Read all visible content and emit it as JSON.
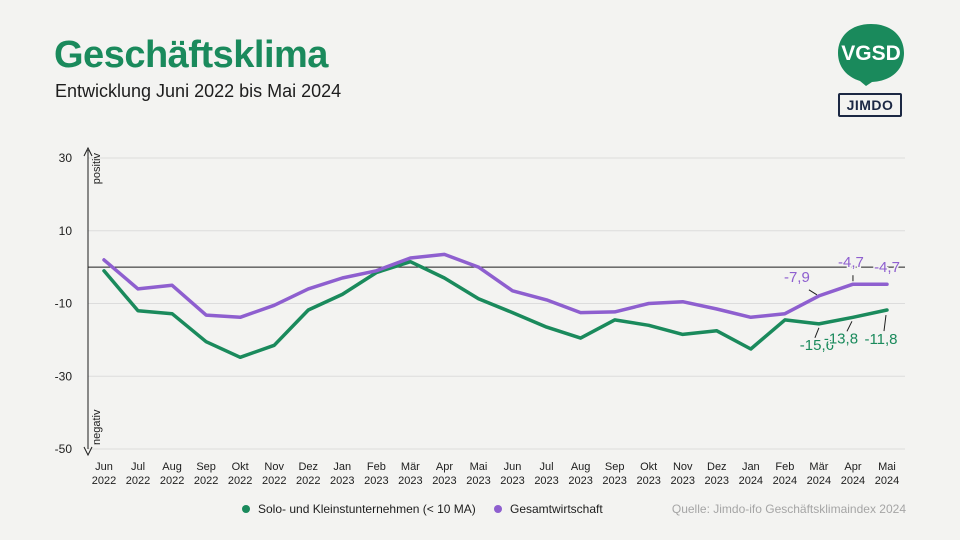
{
  "header": {
    "title": "Geschäftsklima",
    "subtitle": "Entwicklung Juni 2022 bis Mai 2024"
  },
  "logos": {
    "vgsd": "VGSD",
    "jimdo": "JIMDO"
  },
  "colors": {
    "green": "#1a8a5c",
    "purple": "#8e5fcf",
    "title_green": "#1a8a5c",
    "grid": "#dcdcdc"
  },
  "source": "Quelle: Jimdo-ifo Geschäftsklimaindex 2024",
  "chart_data": {
    "type": "line",
    "title": "Geschäftsklima",
    "xlabel": "",
    "ylabel": "",
    "axis_direction_labels": {
      "top": "positiv",
      "bottom": "negativ"
    },
    "ylim": [
      -50,
      30
    ],
    "yticks": [
      30,
      10,
      -10,
      -30,
      -50
    ],
    "categories": [
      [
        "Jun",
        "2022"
      ],
      [
        "Jul",
        "2022"
      ],
      [
        "Aug",
        "2022"
      ],
      [
        "Sep",
        "2022"
      ],
      [
        "Okt",
        "2022"
      ],
      [
        "Nov",
        "2022"
      ],
      [
        "Dez",
        "2022"
      ],
      [
        "Jan",
        "2023"
      ],
      [
        "Feb",
        "2023"
      ],
      [
        "Mär",
        "2023"
      ],
      [
        "Apr",
        "2023"
      ],
      [
        "Mai",
        "2023"
      ],
      [
        "Jun",
        "2023"
      ],
      [
        "Jul",
        "2023"
      ],
      [
        "Aug",
        "2023"
      ],
      [
        "Sep",
        "2023"
      ],
      [
        "Okt",
        "2023"
      ],
      [
        "Nov",
        "2023"
      ],
      [
        "Dez",
        "2023"
      ],
      [
        "Jan",
        "2024"
      ],
      [
        "Feb",
        "2024"
      ],
      [
        "Mär",
        "2024"
      ],
      [
        "Apr",
        "2024"
      ],
      [
        "Mai",
        "2024"
      ]
    ],
    "series": [
      {
        "name": "Solo- und Kleinstunternehmen (< 10 MA)",
        "color": "#1a8a5c",
        "values": [
          -1,
          -12,
          -12.8,
          -20.5,
          -24.8,
          -21.5,
          -11.8,
          -7.5,
          -1.5,
          1.5,
          -3,
          -8.7,
          -12.5,
          -16.5,
          -19.5,
          -14.5,
          -16,
          -18.5,
          -17.5,
          -22.5,
          -14.5,
          -15.6,
          -13.8,
          -11.8
        ],
        "labels": [
          {
            "index": 21,
            "text": "-15,6"
          },
          {
            "index": 22,
            "text": "-13,8"
          },
          {
            "index": 23,
            "text": "-11,8"
          }
        ]
      },
      {
        "name": "Gesamtwirtschaft",
        "color": "#8e5fcf",
        "values": [
          2,
          -6,
          -5,
          -13.2,
          -13.8,
          -10.5,
          -6,
          -3,
          -1,
          2.5,
          3.5,
          0,
          -6.5,
          -9,
          -12.5,
          -12.3,
          -10,
          -9.5,
          -11.5,
          -13.8,
          -12.8,
          -7.9,
          -4.7,
          -4.7
        ],
        "labels": [
          {
            "index": 21,
            "text": "-7,9"
          },
          {
            "index": 22,
            "text": "-4,7"
          },
          {
            "index": 23,
            "text": "-4,7"
          }
        ]
      }
    ],
    "reference_line": 0
  }
}
